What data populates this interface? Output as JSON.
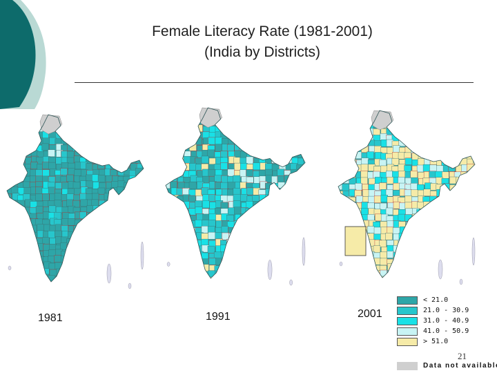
{
  "slide": {
    "title_line1": "Female Literacy Rate (1981-2001)",
    "title_line2": "(India by Districts)",
    "page_number": "21"
  },
  "colors": {
    "deco_dark": "#0d6b6b",
    "deco_light": "#b9d9d4",
    "boundary_red": "#b03030",
    "lt21": "#2ea6a8",
    "r21_30": "#27c6cc",
    "r31_40": "#19e1e6",
    "r41_50": "#c8f4f4",
    "gt51": "#f6eba8",
    "nodata": "#cfcfcf"
  },
  "maps": [
    {
      "year": "1981",
      "mix": {
        "lt21": 0.72,
        "r21_30": 0.14,
        "r31_40": 0.07,
        "r41_50": 0.03,
        "gt51": 0.04
      }
    },
    {
      "year": "1991",
      "mix": {
        "lt21": 0.36,
        "r21_30": 0.28,
        "r31_40": 0.16,
        "r41_50": 0.1,
        "gt51": 0.1
      }
    },
    {
      "year": "2001",
      "mix": {
        "lt21": 0.08,
        "r21_30": 0.12,
        "r31_40": 0.18,
        "r41_50": 0.22,
        "gt51": 0.4
      }
    }
  ],
  "legend": {
    "items": [
      {
        "label": "< 21.0",
        "color": "#2ea6a8"
      },
      {
        "label": "21.0 - 30.9",
        "color": "#27c6cc"
      },
      {
        "label": "31.0 - 40.9",
        "color": "#19e1e6"
      },
      {
        "label": "41.0 - 50.9",
        "color": "#c8f4f4"
      },
      {
        "label": "> 51.0",
        "color": "#f6eba8"
      }
    ],
    "no_data": {
      "label": "Data not available",
      "color": "#cfcfcf"
    }
  }
}
